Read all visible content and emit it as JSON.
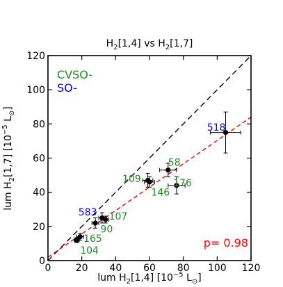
{
  "chart_data": {
    "type": "scatter",
    "title": "H₂[1,4] vs H₂[1,7]",
    "title_parts": {
      "sym": "H",
      "sub": "2",
      "rest": "[1,4] vs H",
      "sub2": "2",
      "tail": "[1,7]"
    },
    "xlabel_parts": {
      "pre": "lum H",
      "sub": "2",
      "mid": "[1,4] [10",
      "sup": "−5",
      "post": " L",
      "sun": "⊙",
      "close": "]"
    },
    "ylabel_parts": {
      "pre": "lum H",
      "sub": "2",
      "mid": "[1,7] [10",
      "sup": "−5",
      "post": " L",
      "sun": "⊙",
      "close": "]"
    },
    "xlim": [
      0,
      120
    ],
    "ylim": [
      0,
      120
    ],
    "xticks": [
      0,
      20,
      40,
      60,
      80,
      100,
      120
    ],
    "yticks": [
      0,
      20,
      40,
      60,
      80,
      100,
      120
    ],
    "legend": [
      {
        "label": "CVSO-",
        "color": "#228b22"
      },
      {
        "label": "SO-",
        "color": "#0000ff"
      }
    ],
    "annotation": {
      "text": "p= 0.98",
      "color": "#ff0000"
    },
    "reference_lines": [
      {
        "name": "one-to-one",
        "color": "#000000",
        "dash": "8,5",
        "x": [
          0,
          120
        ],
        "y": [
          0,
          120
        ]
      },
      {
        "name": "fit",
        "color": "#ff0000",
        "dash": "6,4",
        "x": [
          0,
          120
        ],
        "y": [
          2,
          84
        ]
      }
    ],
    "points": [
      {
        "x": 105,
        "y": 75,
        "xerr": 9,
        "yerr": 12,
        "label": "518",
        "color": "#0000ff",
        "lx": 94,
        "ly": 76
      },
      {
        "x": 71,
        "y": 53,
        "xerr": 5,
        "yerr": 4,
        "label": "58",
        "color": "#228b22",
        "lx": 71,
        "ly": 55.5
      },
      {
        "x": 76,
        "y": 44,
        "xerr": 5,
        "yerr": 5,
        "label": "176",
        "color": "#228b22",
        "lx": 74,
        "ly": 43.5
      },
      {
        "x": 60,
        "y": 46,
        "xerr": 3,
        "yerr": 3,
        "label": "146",
        "color": "#228b22",
        "lx": 61,
        "ly": 38
      },
      {
        "x": 59,
        "y": 47,
        "xerr": 3,
        "yerr": 4,
        "label": "109",
        "color": "#228b22",
        "lx": 44,
        "ly": 46
      },
      {
        "x": 32,
        "y": 25,
        "xerr": 2,
        "yerr": 3,
        "label": "583",
        "color": "#0000ff",
        "lx": 18,
        "ly": 26.5
      },
      {
        "x": 34,
        "y": 24,
        "xerr": 2,
        "yerr": 2,
        "label": "107",
        "color": "#228b22",
        "lx": 36,
        "ly": 24
      },
      {
        "x": 28,
        "y": 22,
        "xerr": 2,
        "yerr": 3,
        "label": "90",
        "color": "#228b22",
        "lx": 31,
        "ly": 16.5
      },
      {
        "x": 19,
        "y": 14,
        "xerr": 2,
        "yerr": 2,
        "label": "165",
        "color": "#228b22",
        "lx": 21,
        "ly": 11
      },
      {
        "x": 17,
        "y": 12,
        "xerr": 1.5,
        "yerr": 1.5,
        "label": "104",
        "color": "#228b22",
        "lx": 19,
        "ly": 4
      }
    ]
  }
}
